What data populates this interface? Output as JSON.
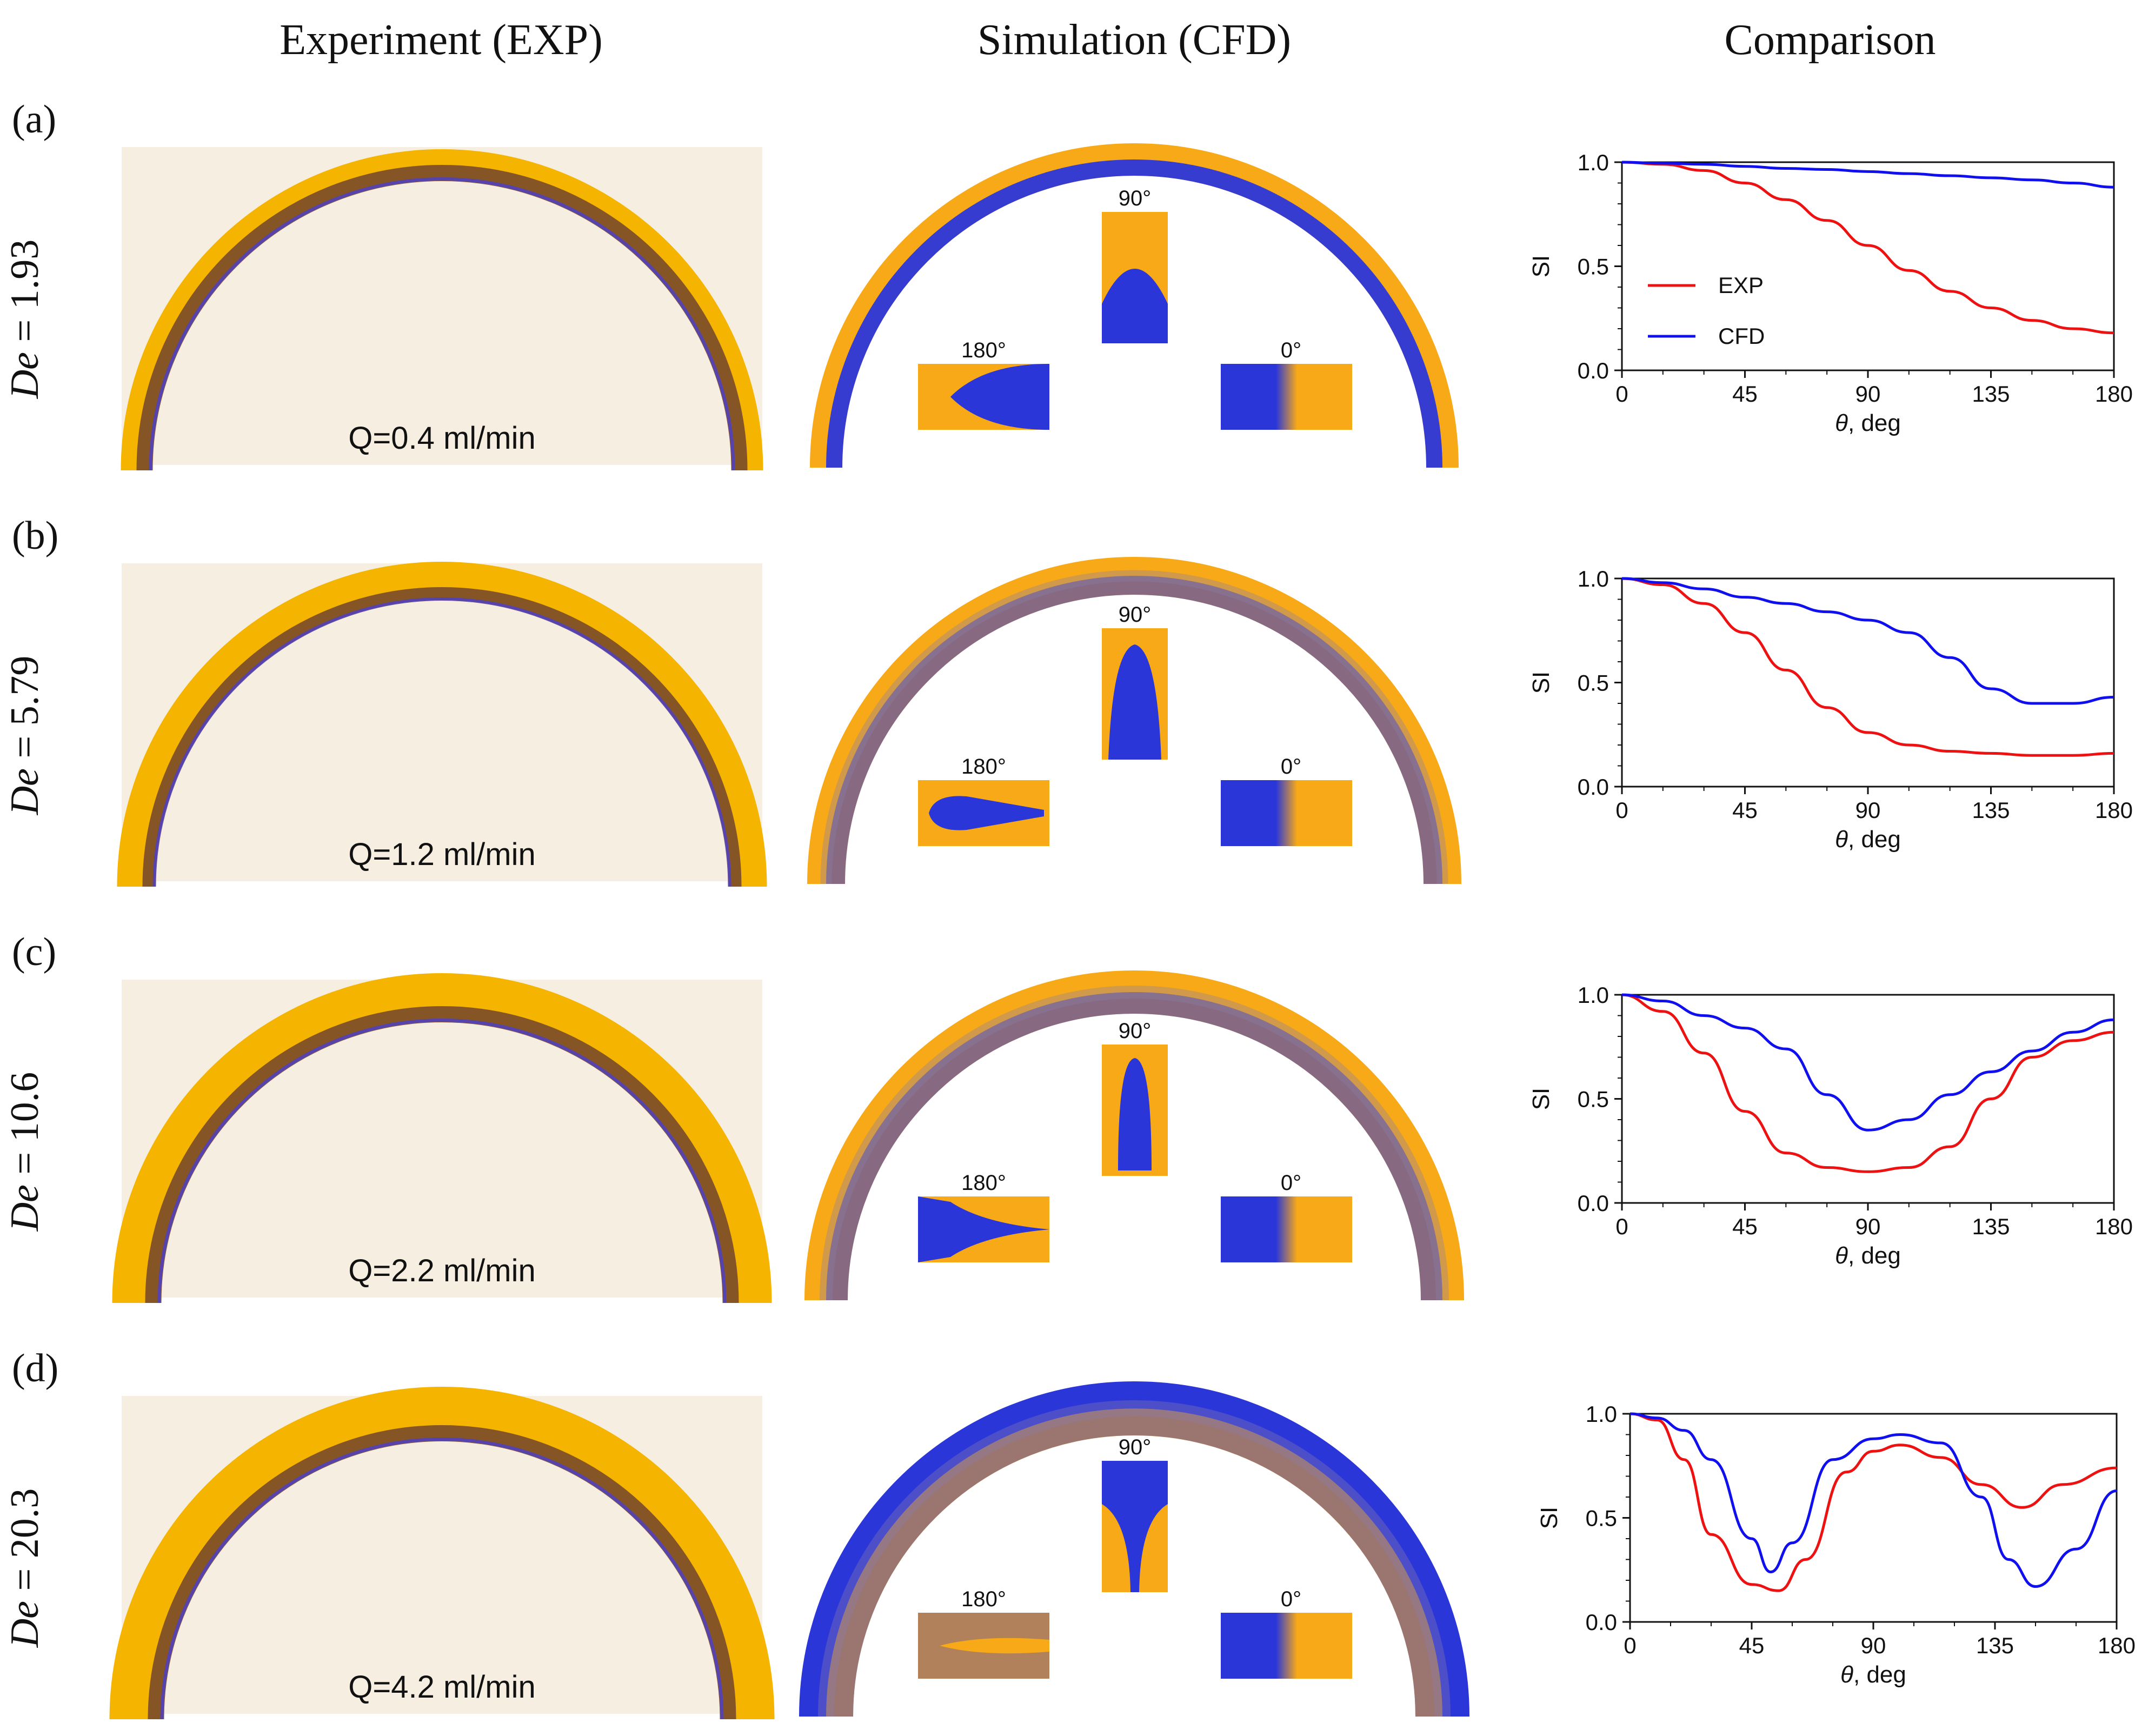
{
  "column_titles": {
    "experiment": "Experiment (EXP)",
    "simulation": "Simulation (CFD)",
    "comparison": "Comparison"
  },
  "inset_angles": {
    "top": "90°",
    "left": "180°",
    "right": "0°"
  },
  "axis": {
    "xlabel_symbol": "θ",
    "xlabel_unit": ", deg",
    "ylabel": "SI",
    "xticks": [
      "0",
      "45",
      "90",
      "135",
      "180"
    ],
    "yticks": [
      "0.0",
      "0.5",
      "1.0"
    ]
  },
  "legend": {
    "exp": "EXP",
    "cfd": "CFD"
  },
  "colors": {
    "exp": "#ee1111",
    "cfd": "#1010ee",
    "orange": "#f7a917",
    "blue": "#2b36d9",
    "photo_bg": "#f6efe1"
  },
  "panels": [
    {
      "letter": "a",
      "de_symbol": "De",
      "de_value": "= 1.93",
      "flow": "Q=0.4 ml/min"
    },
    {
      "letter": "b",
      "de_symbol": "De",
      "de_value": "= 5.79",
      "flow": "Q=1.2 ml/min"
    },
    {
      "letter": "c",
      "de_symbol": "De",
      "de_value": "= 10.6",
      "flow": "Q=2.2 ml/min"
    },
    {
      "letter": "d",
      "de_symbol": "De",
      "de_value": "= 20.3",
      "flow": "Q=4.2 ml/min"
    }
  ],
  "chart_data": [
    {
      "type": "line",
      "panel": "a",
      "xlabel": "θ, deg",
      "ylabel": "SI",
      "xlim": [
        0,
        180
      ],
      "ylim": [
        0,
        1
      ],
      "legend": "upper-left",
      "series": [
        {
          "name": "EXP",
          "x": [
            0,
            15,
            30,
            45,
            60,
            75,
            90,
            105,
            120,
            135,
            150,
            165,
            180
          ],
          "values": [
            1.0,
            0.99,
            0.96,
            0.9,
            0.82,
            0.72,
            0.6,
            0.48,
            0.38,
            0.3,
            0.24,
            0.2,
            0.18
          ]
        },
        {
          "name": "CFD",
          "x": [
            0,
            15,
            30,
            45,
            60,
            75,
            90,
            105,
            120,
            135,
            150,
            165,
            180
          ],
          "values": [
            1.0,
            0.995,
            0.99,
            0.98,
            0.97,
            0.965,
            0.955,
            0.945,
            0.935,
            0.925,
            0.915,
            0.9,
            0.88
          ]
        }
      ]
    },
    {
      "type": "line",
      "panel": "b",
      "xlabel": "θ, deg",
      "ylabel": "SI",
      "xlim": [
        0,
        180
      ],
      "ylim": [
        0,
        1
      ],
      "series": [
        {
          "name": "EXP",
          "x": [
            0,
            15,
            30,
            45,
            60,
            75,
            90,
            105,
            120,
            135,
            150,
            165,
            180
          ],
          "values": [
            1.0,
            0.97,
            0.88,
            0.74,
            0.56,
            0.38,
            0.26,
            0.2,
            0.17,
            0.16,
            0.15,
            0.15,
            0.16
          ]
        },
        {
          "name": "CFD",
          "x": [
            0,
            15,
            30,
            45,
            60,
            75,
            90,
            105,
            120,
            135,
            150,
            165,
            180
          ],
          "values": [
            1.0,
            0.98,
            0.95,
            0.91,
            0.88,
            0.84,
            0.8,
            0.74,
            0.62,
            0.47,
            0.4,
            0.4,
            0.43
          ]
        }
      ]
    },
    {
      "type": "line",
      "panel": "c",
      "xlabel": "θ, deg",
      "ylabel": "SI",
      "xlim": [
        0,
        180
      ],
      "ylim": [
        0,
        1
      ],
      "series": [
        {
          "name": "EXP",
          "x": [
            0,
            15,
            30,
            45,
            60,
            75,
            90,
            105,
            120,
            135,
            150,
            165,
            180
          ],
          "values": [
            1.0,
            0.92,
            0.72,
            0.44,
            0.24,
            0.17,
            0.15,
            0.17,
            0.27,
            0.5,
            0.7,
            0.78,
            0.82
          ]
        },
        {
          "name": "CFD",
          "x": [
            0,
            15,
            30,
            45,
            60,
            75,
            90,
            105,
            120,
            135,
            150,
            165,
            180
          ],
          "values": [
            1.0,
            0.97,
            0.9,
            0.84,
            0.74,
            0.52,
            0.35,
            0.4,
            0.52,
            0.63,
            0.73,
            0.82,
            0.88
          ]
        }
      ]
    },
    {
      "type": "line",
      "panel": "d",
      "xlabel": "θ, deg",
      "ylabel": "SI",
      "xlim": [
        0,
        180
      ],
      "ylim": [
        0,
        1
      ],
      "series": [
        {
          "name": "EXP",
          "x": [
            0,
            10,
            20,
            30,
            45,
            55,
            65,
            80,
            90,
            100,
            115,
            130,
            145,
            160,
            180
          ],
          "values": [
            1.0,
            0.97,
            0.78,
            0.42,
            0.18,
            0.15,
            0.3,
            0.72,
            0.82,
            0.85,
            0.79,
            0.66,
            0.55,
            0.66,
            0.74
          ]
        },
        {
          "name": "CFD",
          "x": [
            0,
            10,
            20,
            30,
            45,
            52,
            60,
            75,
            90,
            100,
            115,
            130,
            140,
            150,
            165,
            180
          ],
          "values": [
            1.0,
            0.98,
            0.92,
            0.78,
            0.4,
            0.24,
            0.38,
            0.78,
            0.88,
            0.9,
            0.86,
            0.6,
            0.3,
            0.17,
            0.35,
            0.63
          ]
        }
      ]
    }
  ]
}
